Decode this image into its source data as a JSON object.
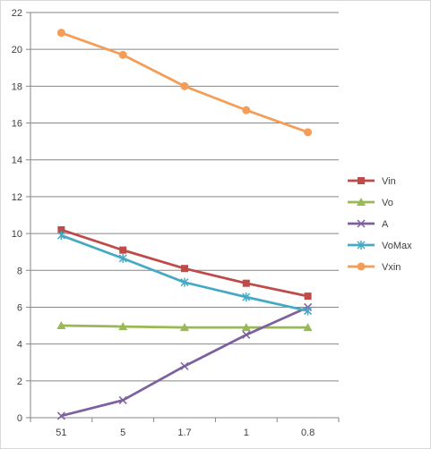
{
  "chart_data": {
    "type": "line",
    "title": "",
    "xlabel": "",
    "ylabel": "",
    "categories": [
      "51",
      "5",
      "1.7",
      "1",
      "0.8"
    ],
    "ylim": [
      0,
      22
    ],
    "yticks": [
      0,
      2,
      4,
      6,
      8,
      10,
      12,
      14,
      16,
      18,
      20,
      22
    ],
    "grid": "horizontal",
    "legend": "right",
    "series": [
      {
        "name": "Vin",
        "color": "#be4b48",
        "marker": "square",
        "values": [
          10.2,
          9.1,
          8.1,
          7.3,
          6.6
        ]
      },
      {
        "name": "Vo",
        "color": "#98b954",
        "marker": "triangle",
        "values": [
          5.0,
          4.95,
          4.9,
          4.9,
          4.9
        ]
      },
      {
        "name": "A",
        "color": "#7d60a0",
        "marker": "x",
        "values": [
          0.1,
          0.95,
          2.8,
          4.5,
          6.0
        ]
      },
      {
        "name": "VoMax",
        "color": "#46aac5",
        "marker": "star",
        "values": [
          9.9,
          8.65,
          7.35,
          6.55,
          5.8
        ]
      },
      {
        "name": "Vxin",
        "color": "#f59d56",
        "marker": "circle",
        "values": [
          20.9,
          19.7,
          18.0,
          16.7,
          15.5
        ]
      }
    ]
  }
}
